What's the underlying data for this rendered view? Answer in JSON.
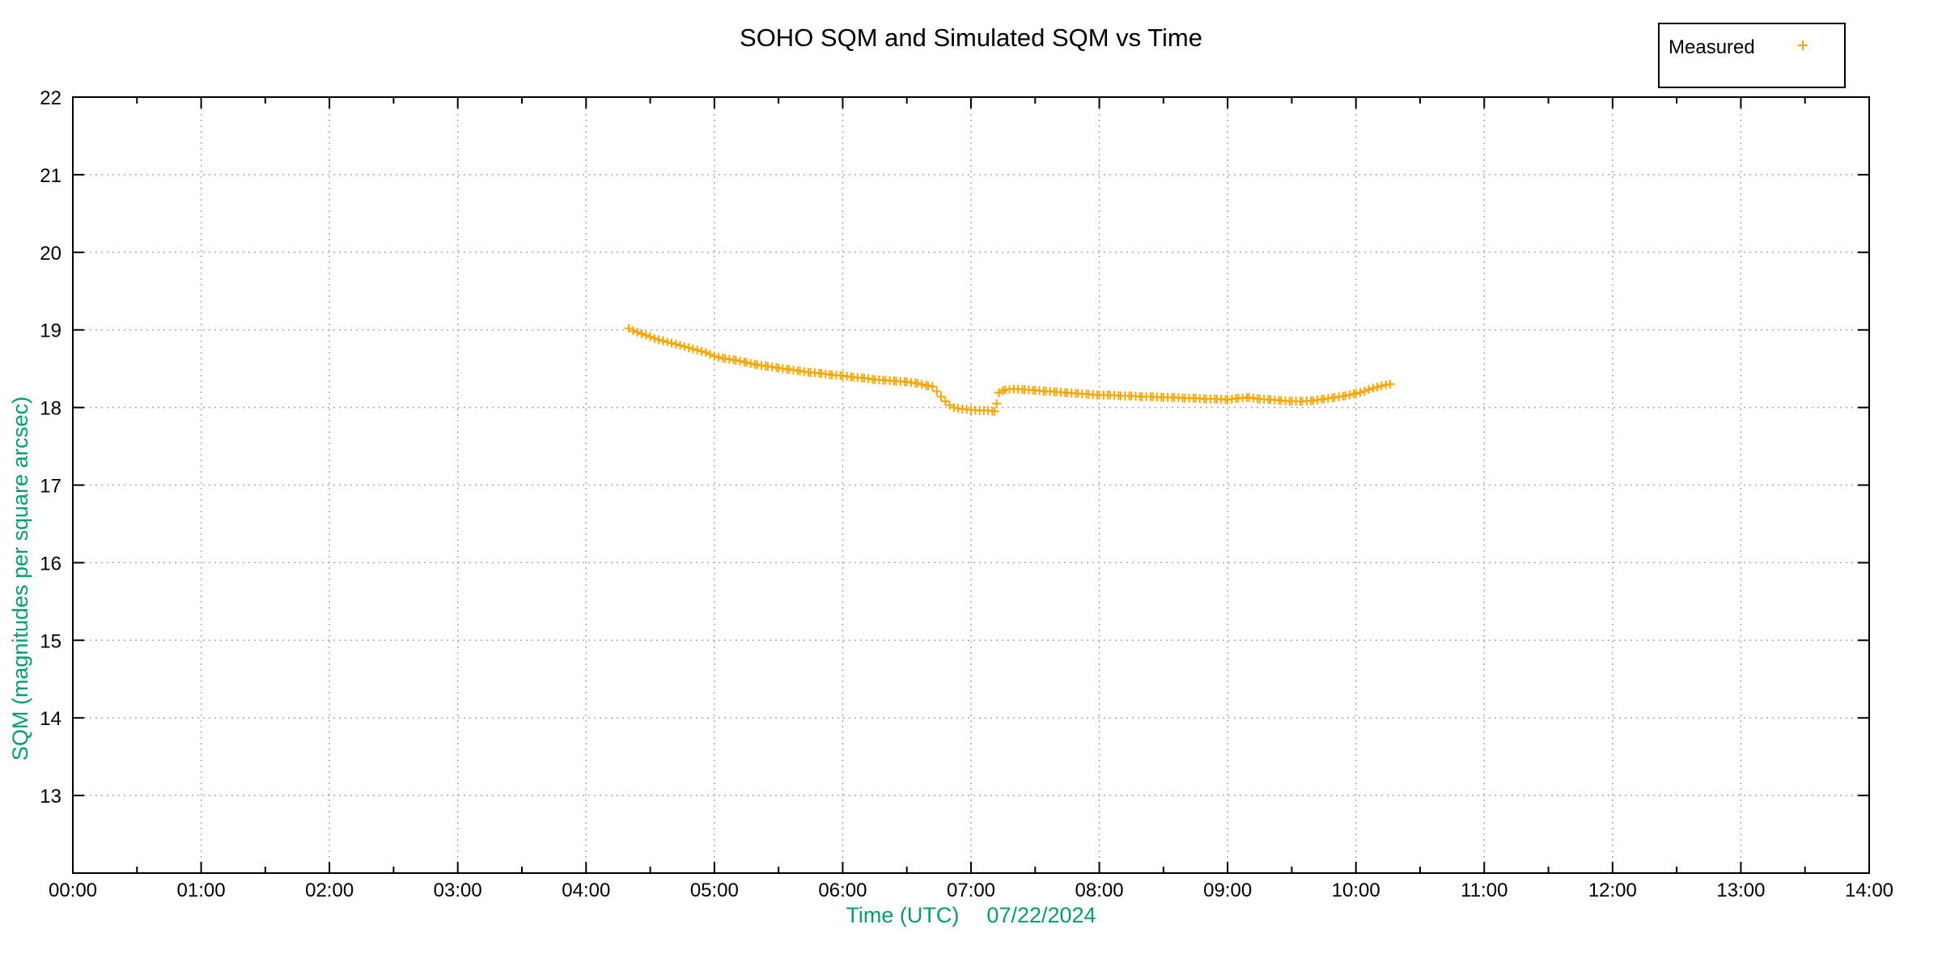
{
  "colors": {
    "measured": "#FFA500",
    "axis_label": "#009E73",
    "grid": "#A9A9A9",
    "frame": "#000000",
    "background": "#FFFFFF"
  },
  "chart_data": {
    "type": "scatter",
    "title": "SOHO SQM and Simulated SQM vs Time",
    "xlabel": "Time (UTC)",
    "xlabel_date": "07/22/2024",
    "ylabel": "SQM (magnitudes per square arcsec)",
    "x_ticks": [
      "00:00",
      "01:00",
      "02:00",
      "03:00",
      "04:00",
      "05:00",
      "06:00",
      "07:00",
      "08:00",
      "09:00",
      "10:00",
      "11:00",
      "12:00",
      "13:00",
      "14:00"
    ],
    "y_ticks": [
      13,
      14,
      15,
      16,
      17,
      18,
      19,
      20,
      21,
      22
    ],
    "x_range_hours": [
      0,
      14
    ],
    "y_range": [
      12,
      22
    ],
    "grid": true,
    "legend_position": "top-right-outside",
    "legend": {
      "entries": [
        {
          "label": "Measured",
          "marker": "plus",
          "color": "#FFA500"
        }
      ]
    },
    "series": [
      {
        "name": "Measured",
        "marker": "plus",
        "color": "#FFA500",
        "marker_interval_minutes": 2,
        "points": [
          [
            "04:20",
            19.02
          ],
          [
            "04:22",
            18.99
          ],
          [
            "04:24",
            18.97
          ],
          [
            "04:26",
            18.95
          ],
          [
            "04:28",
            18.93
          ],
          [
            "04:32",
            18.89
          ],
          [
            "04:36",
            18.86
          ],
          [
            "04:40",
            18.83
          ],
          [
            "04:44",
            18.8
          ],
          [
            "04:48",
            18.77
          ],
          [
            "04:52",
            18.74
          ],
          [
            "04:56",
            18.71
          ],
          [
            "05:00",
            18.66
          ],
          [
            "05:05",
            18.63
          ],
          [
            "05:10",
            18.61
          ],
          [
            "05:15",
            18.58
          ],
          [
            "05:20",
            18.55
          ],
          [
            "05:25",
            18.53
          ],
          [
            "05:30",
            18.51
          ],
          [
            "05:35",
            18.49
          ],
          [
            "05:40",
            18.47
          ],
          [
            "05:45",
            18.45
          ],
          [
            "05:50",
            18.44
          ],
          [
            "05:55",
            18.42
          ],
          [
            "06:00",
            18.41
          ],
          [
            "06:05",
            18.39
          ],
          [
            "06:10",
            18.38
          ],
          [
            "06:15",
            18.36
          ],
          [
            "06:20",
            18.35
          ],
          [
            "06:25",
            18.34
          ],
          [
            "06:30",
            18.33
          ],
          [
            "06:35",
            18.31
          ],
          [
            "06:40",
            18.28
          ],
          [
            "06:42",
            18.27
          ],
          [
            "06:44",
            18.21
          ],
          [
            "06:46",
            18.14
          ],
          [
            "06:48",
            18.08
          ],
          [
            "06:50",
            18.03
          ],
          [
            "06:52",
            18.0
          ],
          [
            "06:54",
            17.99
          ],
          [
            "06:56",
            17.98
          ],
          [
            "07:00",
            17.97
          ],
          [
            "07:04",
            17.96
          ],
          [
            "07:08",
            17.96
          ],
          [
            "07:11",
            17.95
          ],
          [
            "07:12",
            18.05
          ],
          [
            "07:13",
            18.19
          ],
          [
            "07:16",
            18.23
          ],
          [
            "07:20",
            18.24
          ],
          [
            "07:25",
            18.23
          ],
          [
            "07:30",
            18.22
          ],
          [
            "07:35",
            18.21
          ],
          [
            "07:40",
            18.2
          ],
          [
            "07:45",
            18.19
          ],
          [
            "07:50",
            18.18
          ],
          [
            "07:55",
            18.17
          ],
          [
            "08:00",
            18.16
          ],
          [
            "08:05",
            18.16
          ],
          [
            "08:10",
            18.15
          ],
          [
            "08:15",
            18.15
          ],
          [
            "08:20",
            18.14
          ],
          [
            "08:25",
            18.14
          ],
          [
            "08:30",
            18.13
          ],
          [
            "08:35",
            18.13
          ],
          [
            "08:40",
            18.12
          ],
          [
            "08:45",
            18.12
          ],
          [
            "08:50",
            18.11
          ],
          [
            "08:55",
            18.11
          ],
          [
            "09:00",
            18.1
          ],
          [
            "09:05",
            18.12
          ],
          [
            "09:10",
            18.13
          ],
          [
            "09:15",
            18.11
          ],
          [
            "09:20",
            18.1
          ],
          [
            "09:25",
            18.09
          ],
          [
            "09:30",
            18.08
          ],
          [
            "09:35",
            18.08
          ],
          [
            "09:40",
            18.09
          ],
          [
            "09:45",
            18.11
          ],
          [
            "09:50",
            18.13
          ],
          [
            "09:55",
            18.15
          ],
          [
            "10:00",
            18.18
          ],
          [
            "10:04",
            18.21
          ],
          [
            "10:08",
            18.25
          ],
          [
            "10:12",
            18.28
          ],
          [
            "10:16",
            18.3
          ]
        ]
      }
    ]
  }
}
